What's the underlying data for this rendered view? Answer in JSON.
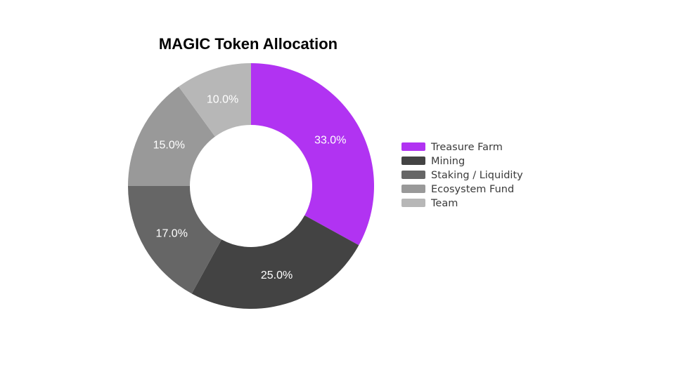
{
  "chart_data": {
    "type": "pie",
    "donut": true,
    "title": "MAGIC Token Allocation",
    "legend_position": "right",
    "slices": [
      {
        "label": "Treasure Farm",
        "value": 33.0,
        "display": "33.0%",
        "color": "#b133f2"
      },
      {
        "label": "Mining",
        "value": 25.0,
        "display": "25.0%",
        "color": "#434343"
      },
      {
        "label": "Staking / Liquidity",
        "value": 17.0,
        "display": "17.0%",
        "color": "#666666"
      },
      {
        "label": "Ecosystem Fund",
        "value": 15.0,
        "display": "15.0%",
        "color": "#999999"
      },
      {
        "label": "Team",
        "value": 10.0,
        "display": "10.0%",
        "color": "#b7b7b7"
      }
    ]
  }
}
